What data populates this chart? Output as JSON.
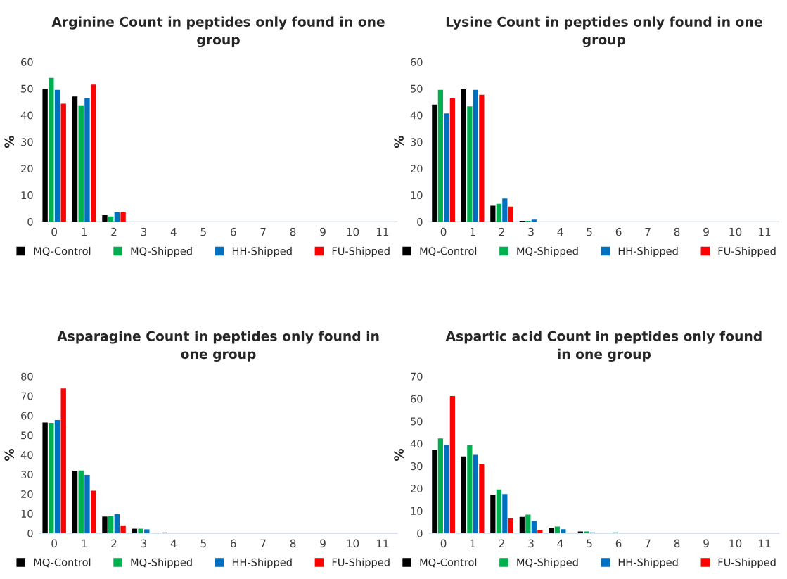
{
  "chart_data": [
    {
      "type": "bar",
      "title": "Arginine Count in peptides only found in one group",
      "ylabel": "%",
      "categories": [
        "0",
        "1",
        "2",
        "3",
        "4",
        "5",
        "6",
        "7",
        "8",
        "9",
        "10",
        "11"
      ],
      "ylim": [
        0,
        60
      ],
      "yticks": [
        0,
        10,
        20,
        30,
        40,
        50,
        60
      ],
      "grid": false,
      "legend": "bottom",
      "series": [
        {
          "name": "MQ-Control",
          "color": "#000000",
          "values": [
            50,
            47,
            2.5,
            null,
            null,
            null,
            null,
            null,
            null,
            null,
            null,
            null
          ]
        },
        {
          "name": "MQ-Shipped",
          "color": "#00b050",
          "values": [
            54,
            43.7,
            2,
            null,
            null,
            null,
            null,
            null,
            null,
            null,
            null,
            null
          ]
        },
        {
          "name": "HH-Shipped",
          "color": "#0070c0",
          "values": [
            49.5,
            46.5,
            3.5,
            null,
            null,
            null,
            null,
            null,
            null,
            null,
            null,
            null
          ]
        },
        {
          "name": "FU-Shipped",
          "color": "#ff0000",
          "values": [
            44.3,
            51.5,
            3.7,
            null,
            null,
            null,
            null,
            null,
            null,
            null,
            null,
            null
          ]
        }
      ]
    },
    {
      "type": "bar",
      "title": "Lysine Count in peptides only found in one group",
      "ylabel": "%",
      "categories": [
        "0",
        "1",
        "2",
        "3",
        "4",
        "5",
        "6",
        "7",
        "8",
        "9",
        "10",
        "11"
      ],
      "ylim": [
        0,
        60
      ],
      "yticks": [
        0,
        10,
        20,
        30,
        40,
        50,
        60
      ],
      "grid": false,
      "legend": "bottom",
      "series": [
        {
          "name": "MQ-Control",
          "color": "#000000",
          "values": [
            44,
            49.7,
            6,
            0.3,
            null,
            null,
            null,
            null,
            null,
            null,
            null,
            null
          ]
        },
        {
          "name": "MQ-Shipped",
          "color": "#00b050",
          "values": [
            49.5,
            43.3,
            6.7,
            0.3,
            null,
            null,
            null,
            null,
            null,
            null,
            null,
            null
          ]
        },
        {
          "name": "HH-Shipped",
          "color": "#0070c0",
          "values": [
            40.7,
            49.5,
            8.7,
            0.8,
            null,
            null,
            null,
            null,
            null,
            null,
            null,
            null
          ]
        },
        {
          "name": "FU-Shipped",
          "color": "#ff0000",
          "values": [
            46.3,
            47.7,
            5.7,
            null,
            null,
            null,
            null,
            null,
            null,
            null,
            null,
            null
          ]
        }
      ]
    },
    {
      "type": "bar",
      "title": "Asparagine Count in peptides only found in one group",
      "ylabel": "%",
      "categories": [
        "0",
        "1",
        "2",
        "3",
        "4",
        "5",
        "6",
        "7",
        "8",
        "9",
        "10",
        "11"
      ],
      "ylim": [
        0,
        80
      ],
      "yticks": [
        0,
        10,
        20,
        30,
        40,
        50,
        60,
        70,
        80
      ],
      "grid": false,
      "legend": "bottom",
      "series": [
        {
          "name": "MQ-Control",
          "color": "#000000",
          "values": [
            56.5,
            31.8,
            8.5,
            2.3,
            0.4,
            null,
            null,
            null,
            null,
            null,
            null,
            null
          ]
        },
        {
          "name": "MQ-Shipped",
          "color": "#00b050",
          "values": [
            56.3,
            32,
            8.7,
            2.3,
            null,
            null,
            null,
            null,
            null,
            null,
            null,
            null
          ]
        },
        {
          "name": "HH-Shipped",
          "color": "#0070c0",
          "values": [
            57.7,
            29.8,
            9.8,
            2,
            null,
            null,
            null,
            null,
            null,
            null,
            null,
            null
          ]
        },
        {
          "name": "FU-Shipped",
          "color": "#ff0000",
          "values": [
            73.8,
            21.7,
            4,
            null,
            null,
            null,
            null,
            null,
            null,
            null,
            null,
            null
          ]
        }
      ]
    },
    {
      "type": "bar",
      "title": "Aspartic acid Count in peptides only found in one group",
      "ylabel": "%",
      "categories": [
        "0",
        "1",
        "2",
        "3",
        "4",
        "5",
        "6",
        "7",
        "8",
        "9",
        "10",
        "11"
      ],
      "ylim": [
        0,
        70
      ],
      "yticks": [
        0,
        10,
        20,
        30,
        40,
        50,
        60,
        70
      ],
      "grid": false,
      "legend": "bottom",
      "series": [
        {
          "name": "MQ-Control",
          "color": "#000000",
          "values": [
            37,
            34.3,
            17.2,
            7.3,
            2.5,
            0.8,
            null,
            null,
            null,
            null,
            null,
            null
          ]
        },
        {
          "name": "MQ-Shipped",
          "color": "#00b050",
          "values": [
            42.3,
            39.3,
            19.5,
            8.3,
            3,
            0.8,
            0.4,
            null,
            null,
            null,
            null,
            null
          ]
        },
        {
          "name": "HH-Shipped",
          "color": "#0070c0",
          "values": [
            39.5,
            35,
            17.5,
            5.5,
            1.8,
            0.4,
            null,
            null,
            null,
            null,
            null,
            null
          ]
        },
        {
          "name": "FU-Shipped",
          "color": "#ff0000",
          "values": [
            61.2,
            30.8,
            6.7,
            1.3,
            null,
            null,
            null,
            null,
            null,
            null,
            null,
            null
          ]
        }
      ]
    }
  ]
}
